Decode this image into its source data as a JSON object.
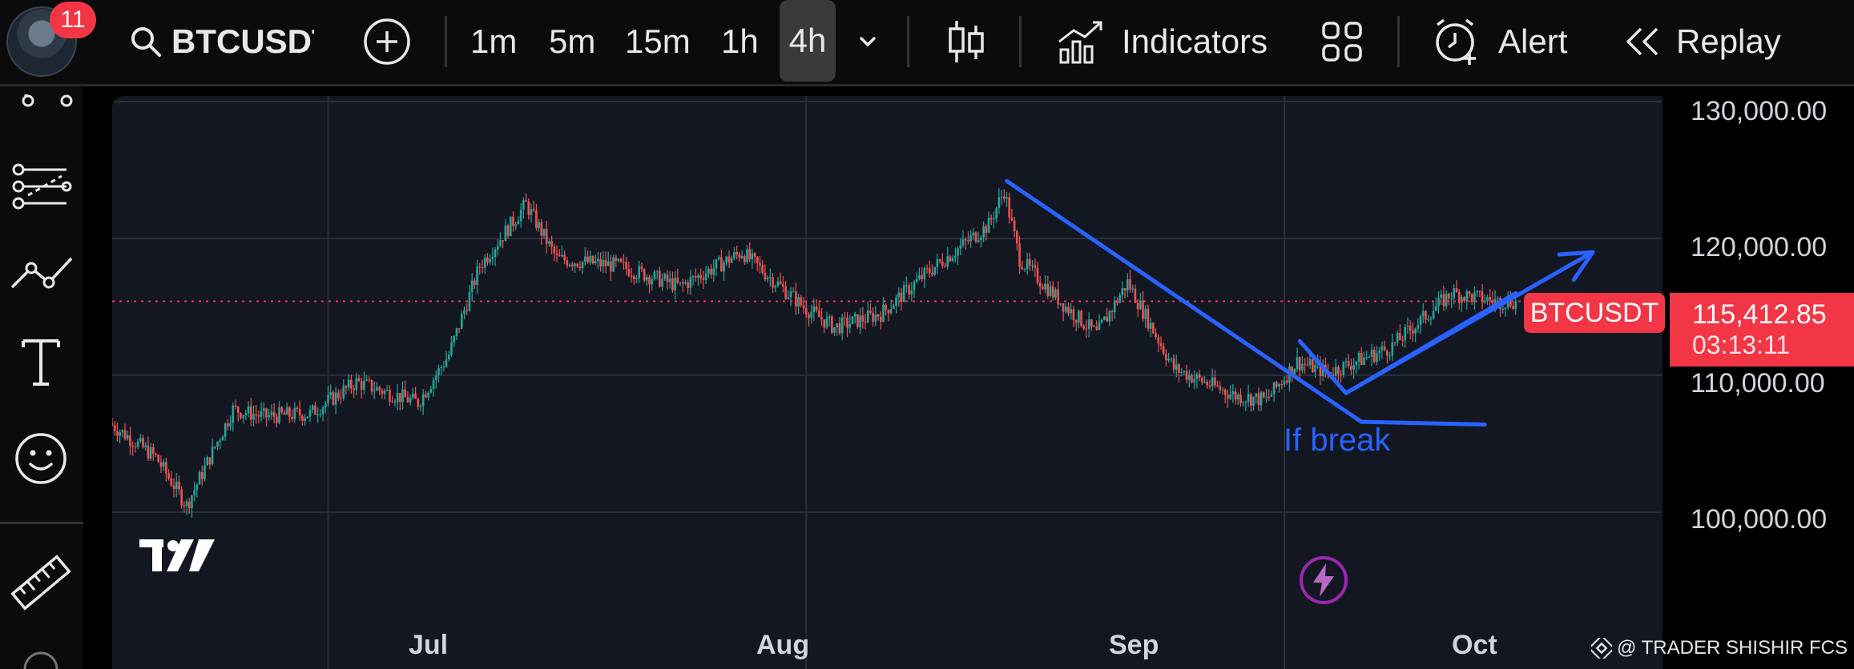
{
  "header": {
    "notification_count": "11",
    "symbol": "BTCUSDT",
    "timeframes": [
      "1m",
      "5m",
      "15m",
      "1h",
      "4h"
    ],
    "active_timeframe": "4h",
    "indicators_label": "Indicators",
    "alert_label": "Alert",
    "replay_label": "Replay"
  },
  "sidebar": {
    "tools": [
      "scissors-icon",
      "fib-retracement-icon",
      "trend-line-icon",
      "text-tool-icon",
      "emoji-icon",
      "ruler-icon"
    ]
  },
  "annotations": {
    "callout_text": "If break"
  },
  "price_scale": {
    "labels": [
      "130,000.00",
      "120,000.00",
      "110,000.00",
      "100,000.00"
    ],
    "current_symbol": "BTCUSDT",
    "current_price": "115,412.85",
    "countdown": "03:13:11"
  },
  "time_scale": {
    "labels": [
      "Jul",
      "Aug",
      "Sep",
      "Oct"
    ]
  },
  "watermark": "@ TRADER SHISHIR FCS",
  "colors": {
    "up": "#26a69a",
    "down": "#ef5350",
    "drawing": "#2962ff",
    "price_tag": "#f23645",
    "background": "#131722"
  },
  "chart_data": {
    "type": "candlestick",
    "symbol": "BTCUSDT",
    "interval": "4h",
    "ylim": [
      95000,
      131000
    ],
    "y_ticks": [
      100000,
      110000,
      120000,
      130000
    ],
    "last_price": 115412.85,
    "keypoints": [
      [
        "2025-06-17",
        106500
      ],
      [
        "2025-06-20",
        104000
      ],
      [
        "2025-06-22",
        100500
      ],
      [
        "2025-06-25",
        107500
      ],
      [
        "2025-06-27",
        107000
      ],
      [
        "2025-06-30",
        107200
      ],
      [
        "2025-07-03",
        109500
      ],
      [
        "2025-07-07",
        108000
      ],
      [
        "2025-07-09",
        111500
      ],
      [
        "2025-07-11",
        118000
      ],
      [
        "2025-07-14",
        122500
      ],
      [
        "2025-07-16",
        118500
      ],
      [
        "2025-07-20",
        118000
      ],
      [
        "2025-07-24",
        116500
      ],
      [
        "2025-07-28",
        119000
      ],
      [
        "2025-08-01",
        115000
      ],
      [
        "2025-08-03",
        113500
      ],
      [
        "2025-08-06",
        114500
      ],
      [
        "2025-08-09",
        117500
      ],
      [
        "2025-08-13",
        121000
      ],
      [
        "2025-08-14",
        123500
      ],
      [
        "2025-08-15",
        118500
      ],
      [
        "2025-08-18",
        115000
      ],
      [
        "2025-08-20",
        113000
      ],
      [
        "2025-08-22",
        116800
      ],
      [
        "2025-08-25",
        110500
      ],
      [
        "2025-08-29",
        108500
      ],
      [
        "2025-08-31",
        108200
      ],
      [
        "2025-09-02",
        111000
      ],
      [
        "2025-09-04",
        110200
      ],
      [
        "2025-09-08",
        112000
      ],
      [
        "2025-09-10",
        114000
      ],
      [
        "2025-09-12",
        116000
      ],
      [
        "2025-09-15",
        115400
      ],
      [
        "2025-09-16",
        115412.85
      ]
    ],
    "drawings": {
      "downtrend_line": [
        [
          "2025-08-14",
          124200
        ],
        [
          "2025-09-06",
          106600
        ]
      ],
      "uptrend_line": [
        [
          "2025-09-05",
          108700
        ],
        [
          "2025-09-16",
          116000
        ]
      ],
      "projection_arrow": [
        [
          "2025-09-02",
          112500
        ],
        [
          "2025-09-05",
          108700
        ],
        [
          "2025-09-21",
          119000
        ]
      ],
      "callout_leader": [
        [
          "2025-09-06",
          106600
        ],
        [
          "2025-09-14",
          106400
        ]
      ]
    }
  }
}
